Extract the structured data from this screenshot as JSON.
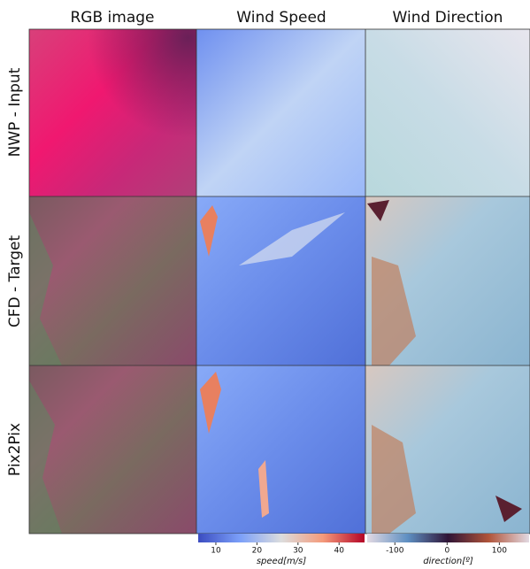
{
  "columns": [
    "RGB image",
    "Wind Speed",
    "Wind Direction"
  ],
  "rows": [
    "NWP - Input",
    "CFD - Target",
    "Pix2Pix"
  ],
  "colorbars": [
    {
      "label": "speed[m/s]",
      "lim": [
        5.7,
        46.2
      ],
      "ticks": [
        10,
        20,
        30,
        40
      ]
    },
    {
      "label": "direction[º]",
      "lim": [
        -153,
        157
      ],
      "ticks": [
        -100,
        0,
        100
      ]
    }
  ]
}
